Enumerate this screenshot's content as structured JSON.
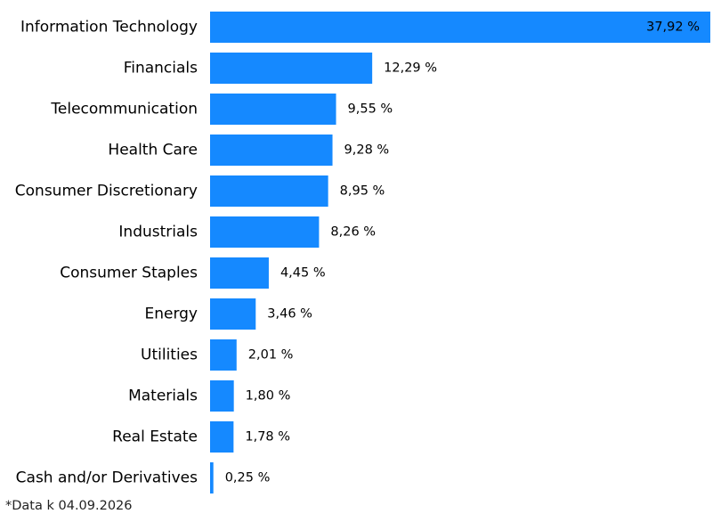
{
  "colors": {
    "bar": "#1589ff",
    "text": "#000000"
  },
  "footnote": "*Data k 04.09.2026",
  "chart_data": {
    "type": "bar",
    "orientation": "horizontal",
    "categories": [
      "Information Technology",
      "Financials",
      "Telecommunication",
      "Health Care",
      "Consumer Discretionary",
      "Industrials",
      "Consumer Staples",
      "Energy",
      "Utilities",
      "Materials",
      "Real Estate",
      "Cash and/or Derivatives"
    ],
    "values": [
      37.92,
      12.29,
      9.55,
      9.28,
      8.95,
      8.26,
      4.45,
      3.46,
      2.01,
      1.8,
      1.78,
      0.25
    ],
    "value_labels": [
      "37,92 %",
      "12,29 %",
      "9,55 %",
      "9,28 %",
      "8,95 %",
      "8,26 %",
      "4,45 %",
      "3,46 %",
      "2,01 %",
      "1,80 %",
      "1,78 %",
      "0,25 %"
    ],
    "xlim": [
      0,
      37.92
    ],
    "grid": false,
    "legend": "none",
    "title": "",
    "xlabel": "",
    "ylabel": ""
  }
}
